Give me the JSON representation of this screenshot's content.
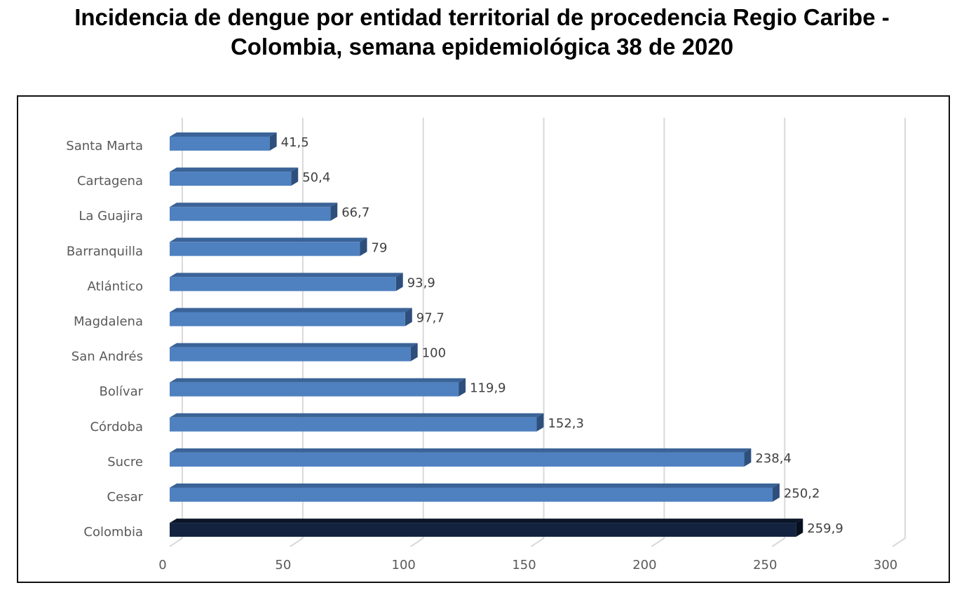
{
  "title": {
    "line1": "Incidencia de dengue por entidad territorial de procedencia Regio Caribe -",
    "line2": "Colombia, semana epidemiológica 38 de 2020"
  },
  "chart_data": {
    "type": "bar",
    "orientation": "horizontal",
    "categories": [
      "Santa Marta",
      "Cartagena",
      "La Guajira",
      "Barranquilla",
      "Atlántico",
      "Magdalena",
      "San Andrés",
      "Bolívar",
      "Córdoba",
      "Sucre",
      "Cesar",
      "Colombia"
    ],
    "values": [
      41.5,
      50.4,
      66.7,
      79,
      93.9,
      97.7,
      100,
      119.9,
      152.3,
      238.4,
      250.2,
      259.9
    ],
    "value_labels": [
      "41,5",
      "50,4",
      "66,7",
      "79",
      "93,9",
      "97,7",
      "100",
      "119,9",
      "152,3",
      "238,4",
      "250,2",
      "259,9"
    ],
    "xlim": [
      0,
      300
    ],
    "ticks": [
      0,
      50,
      100,
      150,
      200,
      250,
      300
    ],
    "grid": true,
    "colors": {
      "bar": "#4f81c0",
      "bar_top": "#3b6398",
      "bar_side": "#2e4f7c",
      "highlight_bar": "#13233f",
      "highlight_top": "#0b1628",
      "highlight_side": "#07101e",
      "grid": "#d9d9d9"
    },
    "highlight_category": "Colombia"
  }
}
